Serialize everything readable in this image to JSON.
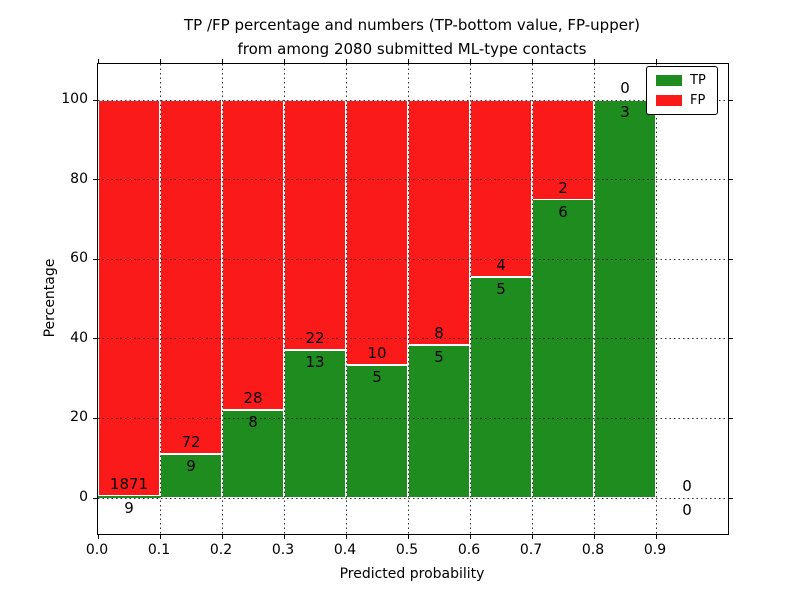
{
  "chart_data": {
    "type": "bar",
    "stacked": true,
    "normalized": "percent",
    "title_line1": "TP /FP percentage and numbers (TP-bottom value, FP-upper)",
    "title_line2": "from among 2080 submitted ML-type contacts",
    "xlabel": "Predicted probability",
    "ylabel": "Percentage",
    "x_tick_labels": [
      "0.0",
      "0.1",
      "0.2",
      "0.3",
      "0.4",
      "0.5",
      "0.6",
      "0.7",
      "0.8",
      "0.9"
    ],
    "y_tick_labels": [
      "0",
      "20",
      "40",
      "60",
      "80",
      "100"
    ],
    "y_tick_values": [
      0,
      20,
      40,
      60,
      80,
      100
    ],
    "ylim": [
      -9,
      109
    ],
    "xlim": [
      0.0,
      1.016
    ],
    "grid_style": "dotted",
    "total_submitted": 2080,
    "categories": [
      "0.0-0.1",
      "0.1-0.2",
      "0.2-0.3",
      "0.3-0.4",
      "0.4-0.5",
      "0.5-0.6",
      "0.6-0.7",
      "0.7-0.8",
      "0.8-0.9",
      "0.9-1.0"
    ],
    "series": [
      {
        "name": "TP",
        "color": "#1e8c1e",
        "counts": [
          9,
          9,
          8,
          13,
          5,
          5,
          5,
          6,
          3,
          0
        ]
      },
      {
        "name": "FP",
        "color": "#fa1a1a",
        "counts": [
          1871,
          72,
          28,
          22,
          10,
          8,
          4,
          2,
          0,
          0
        ]
      }
    ],
    "tp_percent_of_bin": [
      0.5,
      11.1,
      22.2,
      37.1,
      33.3,
      38.5,
      55.6,
      75.0,
      100.0,
      0
    ],
    "legend": {
      "position": "upper right",
      "items": [
        {
          "label": "TP",
          "color": "#1e8c1e"
        },
        {
          "label": "FP",
          "color": "#fa1a1a"
        }
      ]
    }
  },
  "colors": {
    "tp_green": "#1e8c1e",
    "fp_red": "#fa1a1a",
    "background": "#ffffff",
    "axis": "#000000"
  }
}
